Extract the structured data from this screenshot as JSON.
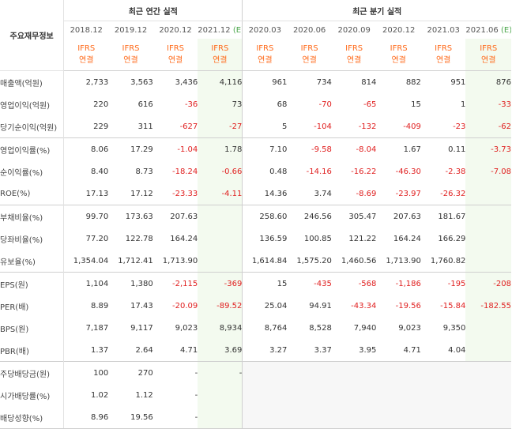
{
  "header": {
    "corner_label": "주요재무정보",
    "annual_group": "최근 연간 실적",
    "quarter_group": "최근 분기 실적",
    "ifrs_line1": "IFRS",
    "ifrs_line2": "연결",
    "columns": [
      {
        "period": "2018.12",
        "suffix": ""
      },
      {
        "period": "2019.12",
        "suffix": ""
      },
      {
        "period": "2020.12",
        "suffix": ""
      },
      {
        "period": "2021.12",
        "suffix": "(E)"
      },
      {
        "period": "2020.03",
        "suffix": ""
      },
      {
        "period": "2020.06",
        "suffix": ""
      },
      {
        "period": "2020.09",
        "suffix": ""
      },
      {
        "period": "2020.12",
        "suffix": ""
      },
      {
        "period": "2021.03",
        "suffix": ""
      },
      {
        "period": "2021.06",
        "suffix": "(E)"
      }
    ]
  },
  "rows": [
    {
      "label": "매출액(억원)",
      "values": [
        "2,733",
        "3,563",
        "3,436",
        "4,116",
        "961",
        "734",
        "814",
        "882",
        "951",
        "876"
      ]
    },
    {
      "label": "영업이익(억원)",
      "values": [
        "220",
        "616",
        "-36",
        "73",
        "68",
        "-70",
        "-65",
        "15",
        "1",
        "-33"
      ]
    },
    {
      "label": "당기순이익(억원)",
      "values": [
        "229",
        "311",
        "-627",
        "-27",
        "5",
        "-104",
        "-132",
        "-409",
        "-23",
        "-62"
      ]
    },
    {
      "label": "영업이익률(%)",
      "values": [
        "8.06",
        "17.29",
        "-1.04",
        "1.78",
        "7.10",
        "-9.58",
        "-8.04",
        "1.67",
        "0.11",
        "-3.73"
      ]
    },
    {
      "label": "순이익률(%)",
      "values": [
        "8.40",
        "8.73",
        "-18.24",
        "-0.66",
        "0.48",
        "-14.16",
        "-16.22",
        "-46.30",
        "-2.38",
        "-7.08"
      ]
    },
    {
      "label": "ROE(%)",
      "values": [
        "17.13",
        "17.12",
        "-23.33",
        "-4.11",
        "14.36",
        "3.74",
        "-8.69",
        "-23.97",
        "-26.32",
        ""
      ]
    },
    {
      "label": "부채비율(%)",
      "values": [
        "99.70",
        "173.63",
        "207.63",
        "",
        "258.60",
        "246.56",
        "305.47",
        "207.63",
        "181.67",
        ""
      ]
    },
    {
      "label": "당좌비율(%)",
      "values": [
        "77.20",
        "122.78",
        "164.24",
        "",
        "136.59",
        "100.85",
        "121.22",
        "164.24",
        "166.29",
        ""
      ]
    },
    {
      "label": "유보율(%)",
      "values": [
        "1,354.04",
        "1,712.41",
        "1,713.90",
        "",
        "1,614.84",
        "1,575.20",
        "1,460.56",
        "1,713.90",
        "1,760.82",
        ""
      ]
    },
    {
      "label": "EPS(원)",
      "values": [
        "1,104",
        "1,380",
        "-2,115",
        "-369",
        "15",
        "-435",
        "-568",
        "-1,186",
        "-195",
        "-208"
      ]
    },
    {
      "label": "PER(배)",
      "values": [
        "8.89",
        "17.43",
        "-20.09",
        "-89.52",
        "25.04",
        "94.91",
        "-43.34",
        "-19.56",
        "-15.84",
        "-182.55"
      ]
    },
    {
      "label": "BPS(원)",
      "values": [
        "7,187",
        "9,117",
        "9,023",
        "8,934",
        "8,764",
        "8,528",
        "7,940",
        "9,023",
        "9,350",
        ""
      ]
    },
    {
      "label": "PBR(배)",
      "values": [
        "1.37",
        "2.64",
        "4.71",
        "3.69",
        "3.27",
        "3.37",
        "3.95",
        "4.71",
        "4.04",
        ""
      ]
    },
    {
      "label": "주당배당금(원)",
      "values": [
        "100",
        "270",
        "-",
        "-",
        "",
        "",
        "",
        "",
        "",
        ""
      ]
    },
    {
      "label": "시가배당률(%)",
      "values": [
        "1.02",
        "1.12",
        "-",
        "",
        "",
        "",
        "",
        "",
        "",
        ""
      ]
    },
    {
      "label": "배당성향(%)",
      "values": [
        "8.96",
        "19.56",
        "-",
        "",
        "",
        "",
        "",
        "",
        "",
        ""
      ]
    }
  ],
  "colors": {
    "negative": "#e02020",
    "ifrs": "#ff6a1a",
    "estimate_bg": "#f3faef",
    "estimate_suffix": "#4aa64a",
    "empty_bg": "#f7f7f7"
  }
}
